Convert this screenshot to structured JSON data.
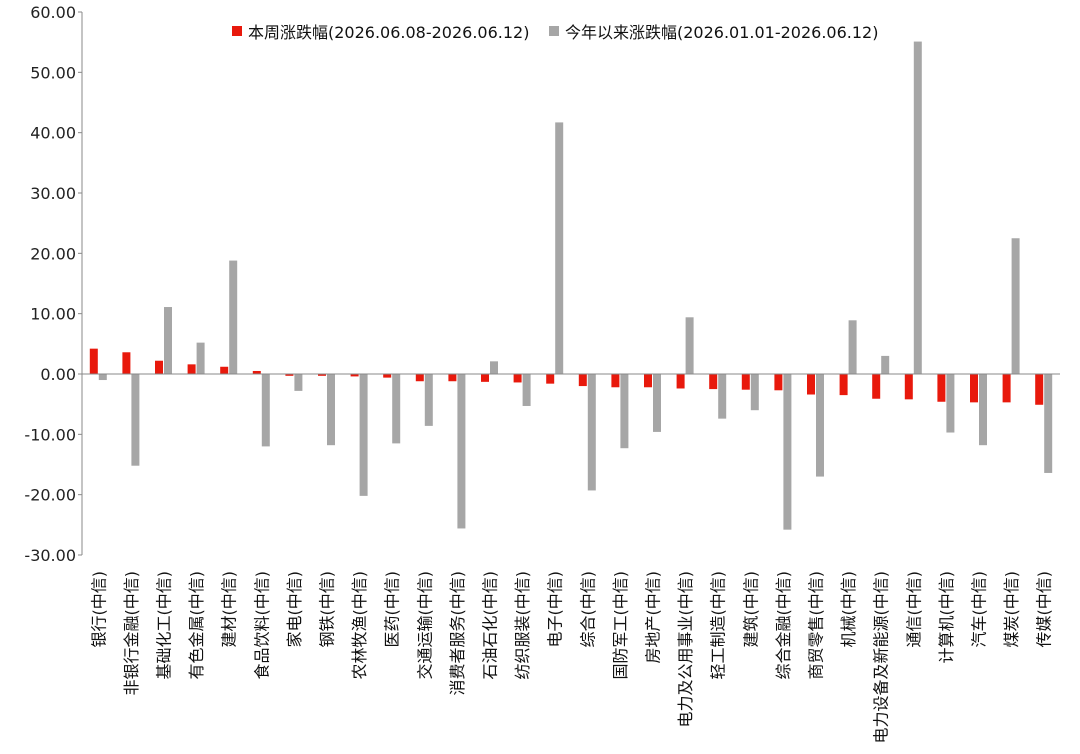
{
  "chart_data": {
    "type": "bar",
    "title": "",
    "xlabel": "",
    "ylabel": "",
    "ylim": [
      -30,
      60
    ],
    "yticks": [
      60,
      50,
      40,
      30,
      20,
      10,
      0,
      -10,
      -20,
      -30
    ],
    "ytick_labels": [
      "60.00",
      "50.00",
      "40.00",
      "30.00",
      "20.00",
      "10.00",
      "0.00",
      "-10.00",
      "-20.00",
      "-30.00"
    ],
    "grid": false,
    "legend_position": "top",
    "categories": [
      "银行(中信)",
      "非银行金融(中信)",
      "基础化工(中信)",
      "有色金属(中信)",
      "建材(中信)",
      "食品饮料(中信)",
      "家电(中信)",
      "钢铁(中信)",
      "农林牧渔(中信)",
      "医药(中信)",
      "交通运输(中信)",
      "消费者服务(中信)",
      "石油石化(中信)",
      "纺织服装(中信)",
      "电子(中信)",
      "综合(中信)",
      "国防军工(中信)",
      "房地产(中信)",
      "电力及公用事业(中信)",
      "轻工制造(中信)",
      "建筑(中信)",
      "综合金融(中信)",
      "商贸零售(中信)",
      "机械(中信)",
      "电力设备及新能源(中信)",
      "通信(中信)",
      "计算机(中信)",
      "汽车(中信)",
      "煤炭(中信)",
      "传媒(中信)"
    ],
    "series": [
      {
        "name": "本周涨跌幅(2026.06.08-2026.06.12)",
        "color": "#e8190c",
        "values": [
          4.2,
          3.6,
          2.2,
          1.6,
          1.2,
          0.5,
          -0.3,
          -0.3,
          -0.4,
          -0.6,
          -1.2,
          -1.2,
          -1.3,
          -1.4,
          -1.6,
          -2.0,
          -2.2,
          -2.2,
          -2.4,
          -2.5,
          -2.6,
          -2.7,
          -3.4,
          -3.5,
          -4.1,
          -4.2,
          -4.6,
          -4.7,
          -4.7,
          -5.1
        ]
      },
      {
        "name": "今年以来涨跌幅(2026.01.01-2026.06.12)",
        "color": "#a6a6a6",
        "values": [
          -1.0,
          -15.2,
          11.1,
          5.2,
          18.8,
          -12.0,
          -2.8,
          -11.8,
          -20.2,
          -11.5,
          -8.6,
          -25.6,
          2.1,
          -5.3,
          41.7,
          -19.3,
          -12.3,
          -9.6,
          9.4,
          -7.4,
          -6.0,
          -25.8,
          -17.0,
          8.9,
          3.0,
          55.1,
          -9.7,
          -11.8,
          22.5,
          -16.4
        ]
      }
    ]
  }
}
